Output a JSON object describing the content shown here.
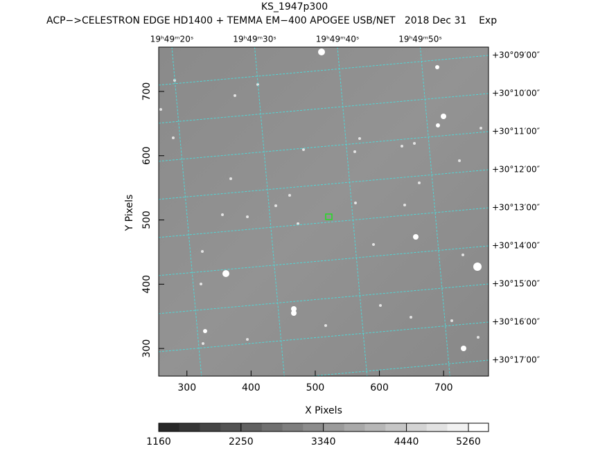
{
  "chart_data": {
    "type": "image",
    "title": "KS_1947p300",
    "subtitle": "ACP−>CELESTRON EDGE HD1400 + TEMMA EM−400 APOGEE USB/NET   2018 Dec 31    Exp",
    "xlabel": "X Pixels",
    "ylabel": "Y Pixels",
    "xlim": [
      256,
      770
    ],
    "ylim": [
      257,
      769
    ],
    "xticks": [
      300,
      400,
      500,
      600,
      700
    ],
    "yticks": [
      300,
      400,
      500,
      600,
      700
    ],
    "ra_labels": [
      "19ʰ49ᵐ20ˢ",
      "19ʰ49ᵐ30ˢ",
      "19ʰ49ᵐ40ˢ",
      "19ʰ49ᵐ50ˢ"
    ],
    "dec_labels": [
      "+30°09′00″",
      "+30°10′00″",
      "+30°11′00″",
      "+30°12′00″",
      "+30°13′00″",
      "+30°14′00″",
      "+30°15′00″",
      "+30°16′00″",
      "+30°17′00″"
    ],
    "grid_color": "#4fd8d8",
    "clim": [
      1160,
      5526
    ],
    "cticks": [
      1160,
      2250,
      3340,
      4440,
      5260
    ],
    "colorbar_levels": 16
  }
}
